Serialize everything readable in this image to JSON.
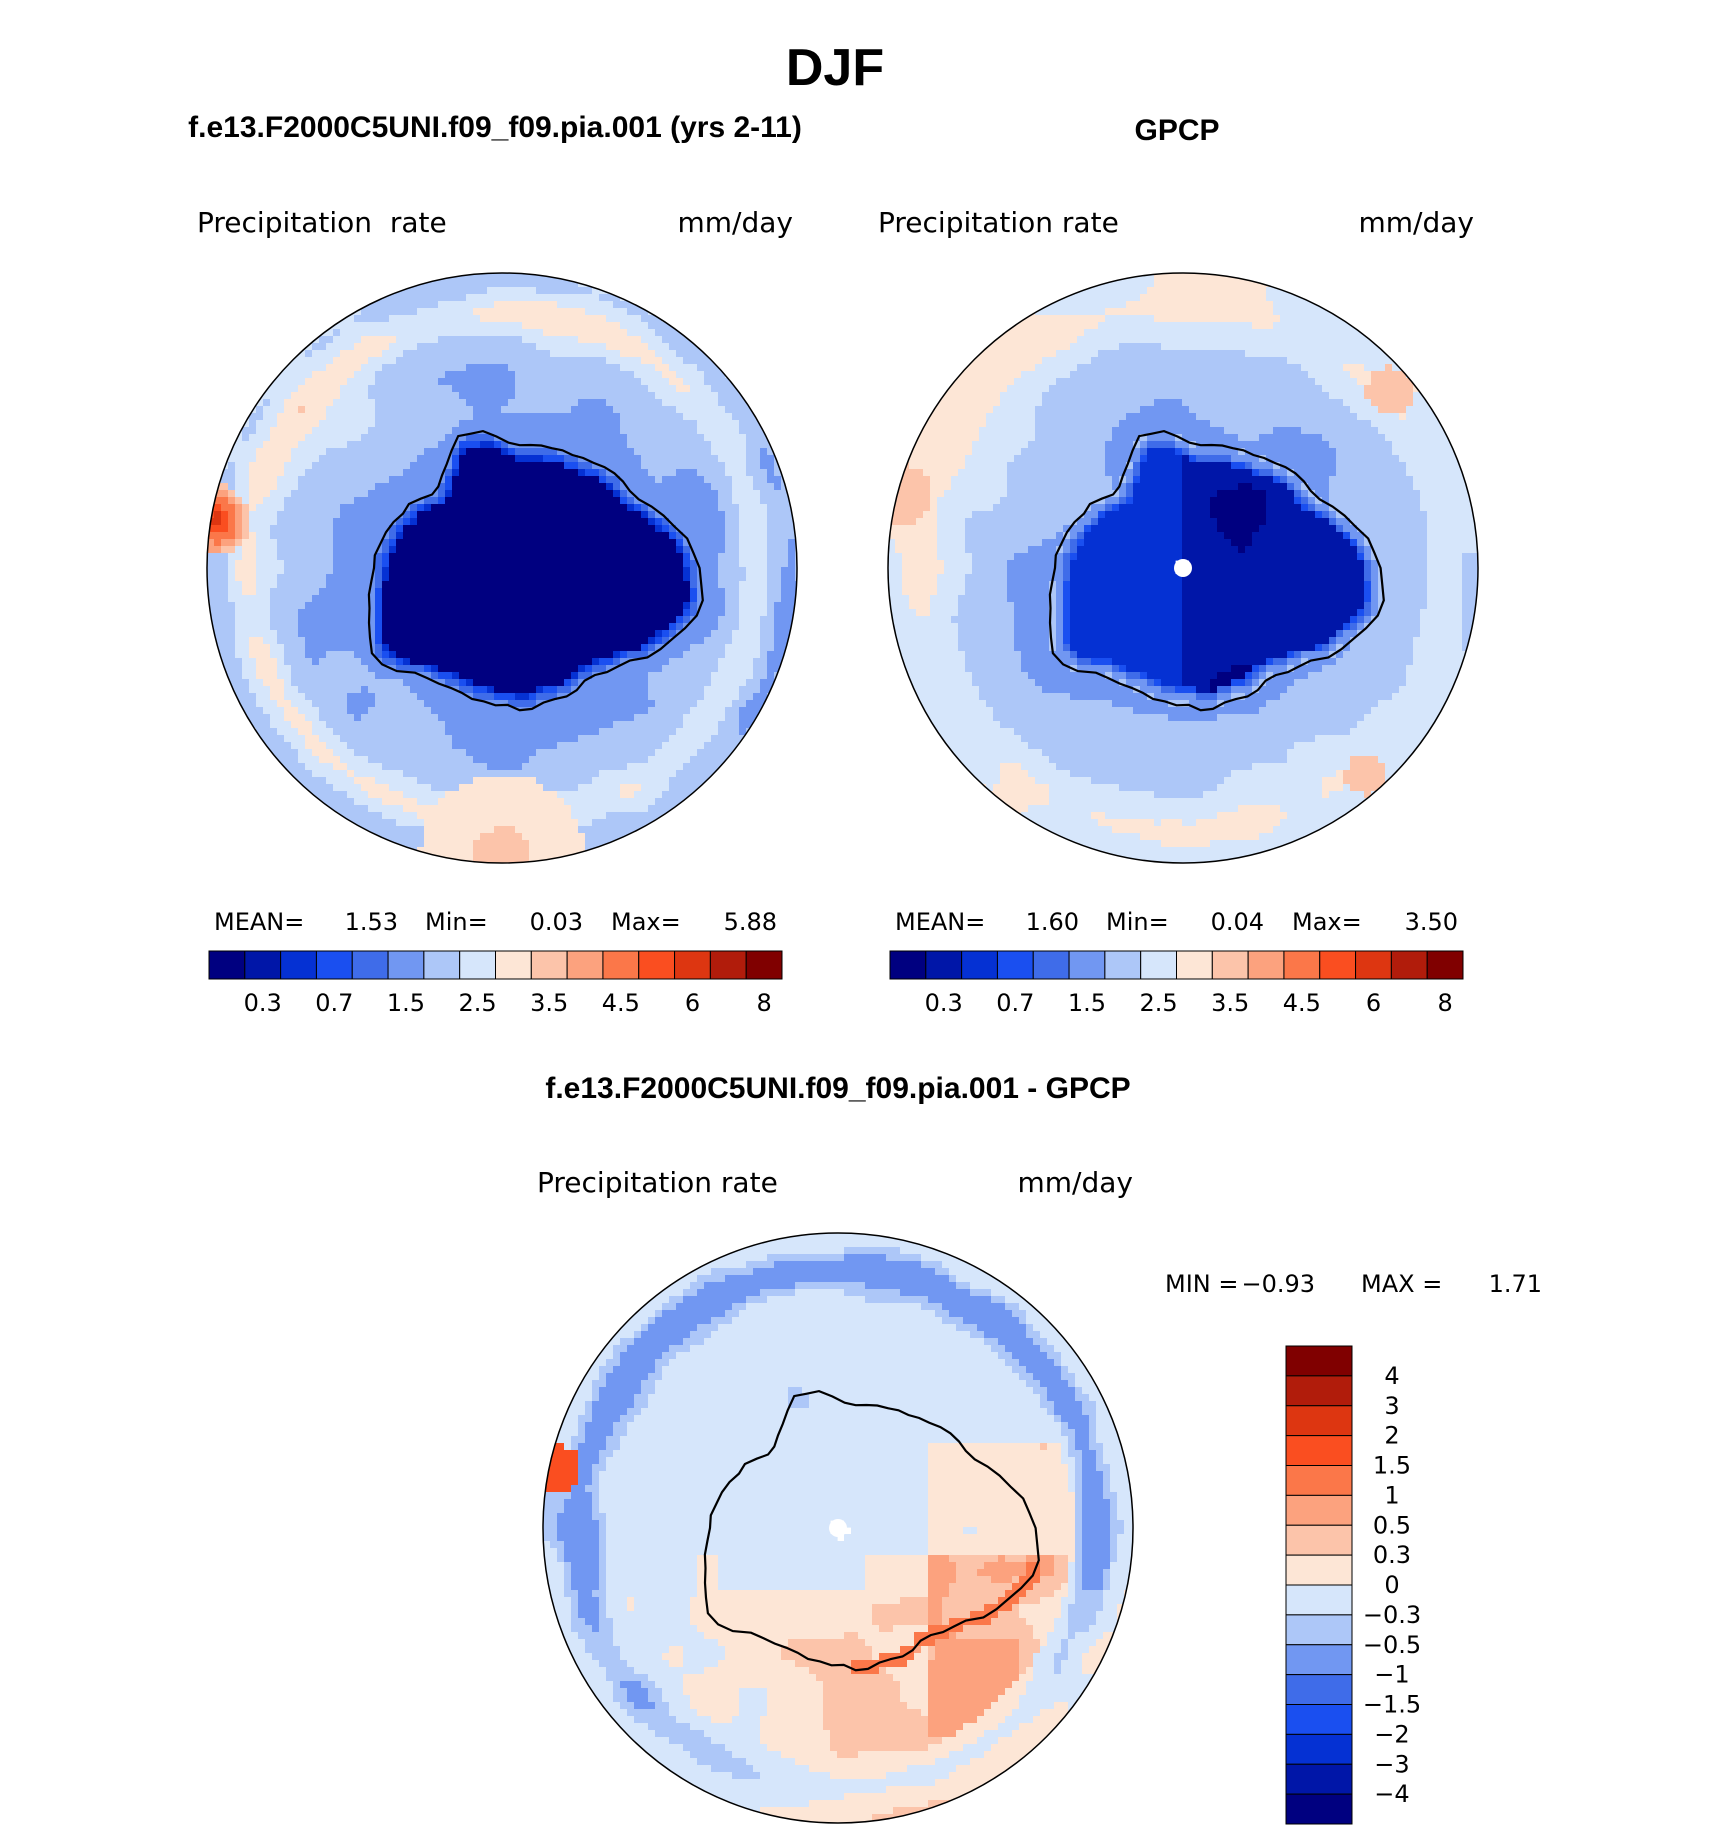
{
  "page_title": "DJF",
  "colors": {
    "seq": [
      "#000080",
      "#0016a8",
      "#0531d3",
      "#1a4ff0",
      "#3f6ce9",
      "#7197f2",
      "#adc7f8",
      "#d6e6fb",
      "#fde6d6",
      "#fcc4aa",
      "#fca27e",
      "#fb7749",
      "#fa4e20",
      "#dd3611",
      "#b11c0b",
      "#800000"
    ],
    "diff": [
      "#000080",
      "#0016a8",
      "#0531d3",
      "#1a4ff0",
      "#3f6ce9",
      "#7197f2",
      "#adc7f8",
      "#d6e6fb",
      "#fde6d6",
      "#fcc4aa",
      "#fca27e",
      "#fb7749",
      "#fa4e20",
      "#dd3611",
      "#b11c0b",
      "#800000"
    ],
    "coast": "#000000",
    "pole_mask": "#ffffff"
  },
  "chart_data": [
    {
      "type": "heatmap",
      "projection": "south-polar-stereographic",
      "title": "f.e13.F2000C5UNI.f09_f09.pia.001 (yrs 2-11)",
      "left_label": "Precipitation  rate",
      "right_label": "mm/day",
      "stats": {
        "mean_label": "MEAN=",
        "mean": "1.53",
        "min_label": "Min=",
        "min": "0.03",
        "max_label": "Max=",
        "max": "5.88"
      },
      "colorbar_levels": [
        "0.3",
        "0.7",
        "1.5",
        "2.5",
        "3.5",
        "4.5",
        "6",
        "8"
      ],
      "levels_all": [
        0.2,
        0.3,
        0.5,
        0.7,
        1,
        1.5,
        2,
        2.5,
        3,
        3.5,
        4,
        4.5,
        5,
        6,
        7,
        8
      ],
      "field_model": {
        "continent_value": 0.15,
        "coast_band_value": 0.9,
        "ocean_base": 2.0,
        "ring_value": 2.8,
        "warm_patch": "north_pacific_edge"
      }
    },
    {
      "type": "heatmap",
      "projection": "south-polar-stereographic",
      "title": "GPCP",
      "left_label": "Precipitation  rate",
      "right_label": "mm/day",
      "stats": {
        "mean_label": "MEAN=",
        "mean": "1.60",
        "min_label": "Min=",
        "min": "0.04",
        "max_label": "Max=",
        "max": "3.50"
      },
      "colorbar_levels": [
        "0.3",
        "0.7",
        "1.5",
        "2.5",
        "3.5",
        "4.5",
        "6",
        "8"
      ],
      "levels_all": [
        0.2,
        0.3,
        0.5,
        0.7,
        1,
        1.5,
        2,
        2.5,
        3,
        3.5,
        4,
        4.5,
        5,
        6,
        7,
        8
      ],
      "field_model": {
        "continent_value": 0.25,
        "coast_band_value": 1.2,
        "ocean_base": 2.2,
        "ring_value": 3.0,
        "pole_missing": true
      }
    },
    {
      "type": "heatmap",
      "projection": "south-polar-stereographic",
      "title": "f.e13.F2000C5UNI.f09_f09.pia.001 - GPCP",
      "left_label": "Precipitation  rate",
      "right_label": "mm/day",
      "stats": {
        "min_label": "MIN =",
        "min": "−0.93",
        "max_label": "MAX =",
        "max": "1.71"
      },
      "colorbar_levels": [
        "4",
        "3",
        "2",
        "1.5",
        "1",
        "0.5",
        "0.3",
        "0",
        "−0.3",
        "−0.5",
        "−1",
        "−1.5",
        "−2",
        "−3",
        "−4"
      ],
      "levels_all": [
        -4,
        -3,
        -2,
        -1.5,
        -1,
        -0.5,
        -0.3,
        0,
        0.3,
        0.5,
        1,
        1.5,
        2,
        3,
        4
      ],
      "field_model": {
        "background": -0.1,
        "positive_sector": "pacific",
        "negative_ring": -0.4,
        "pole_missing": true
      }
    }
  ]
}
